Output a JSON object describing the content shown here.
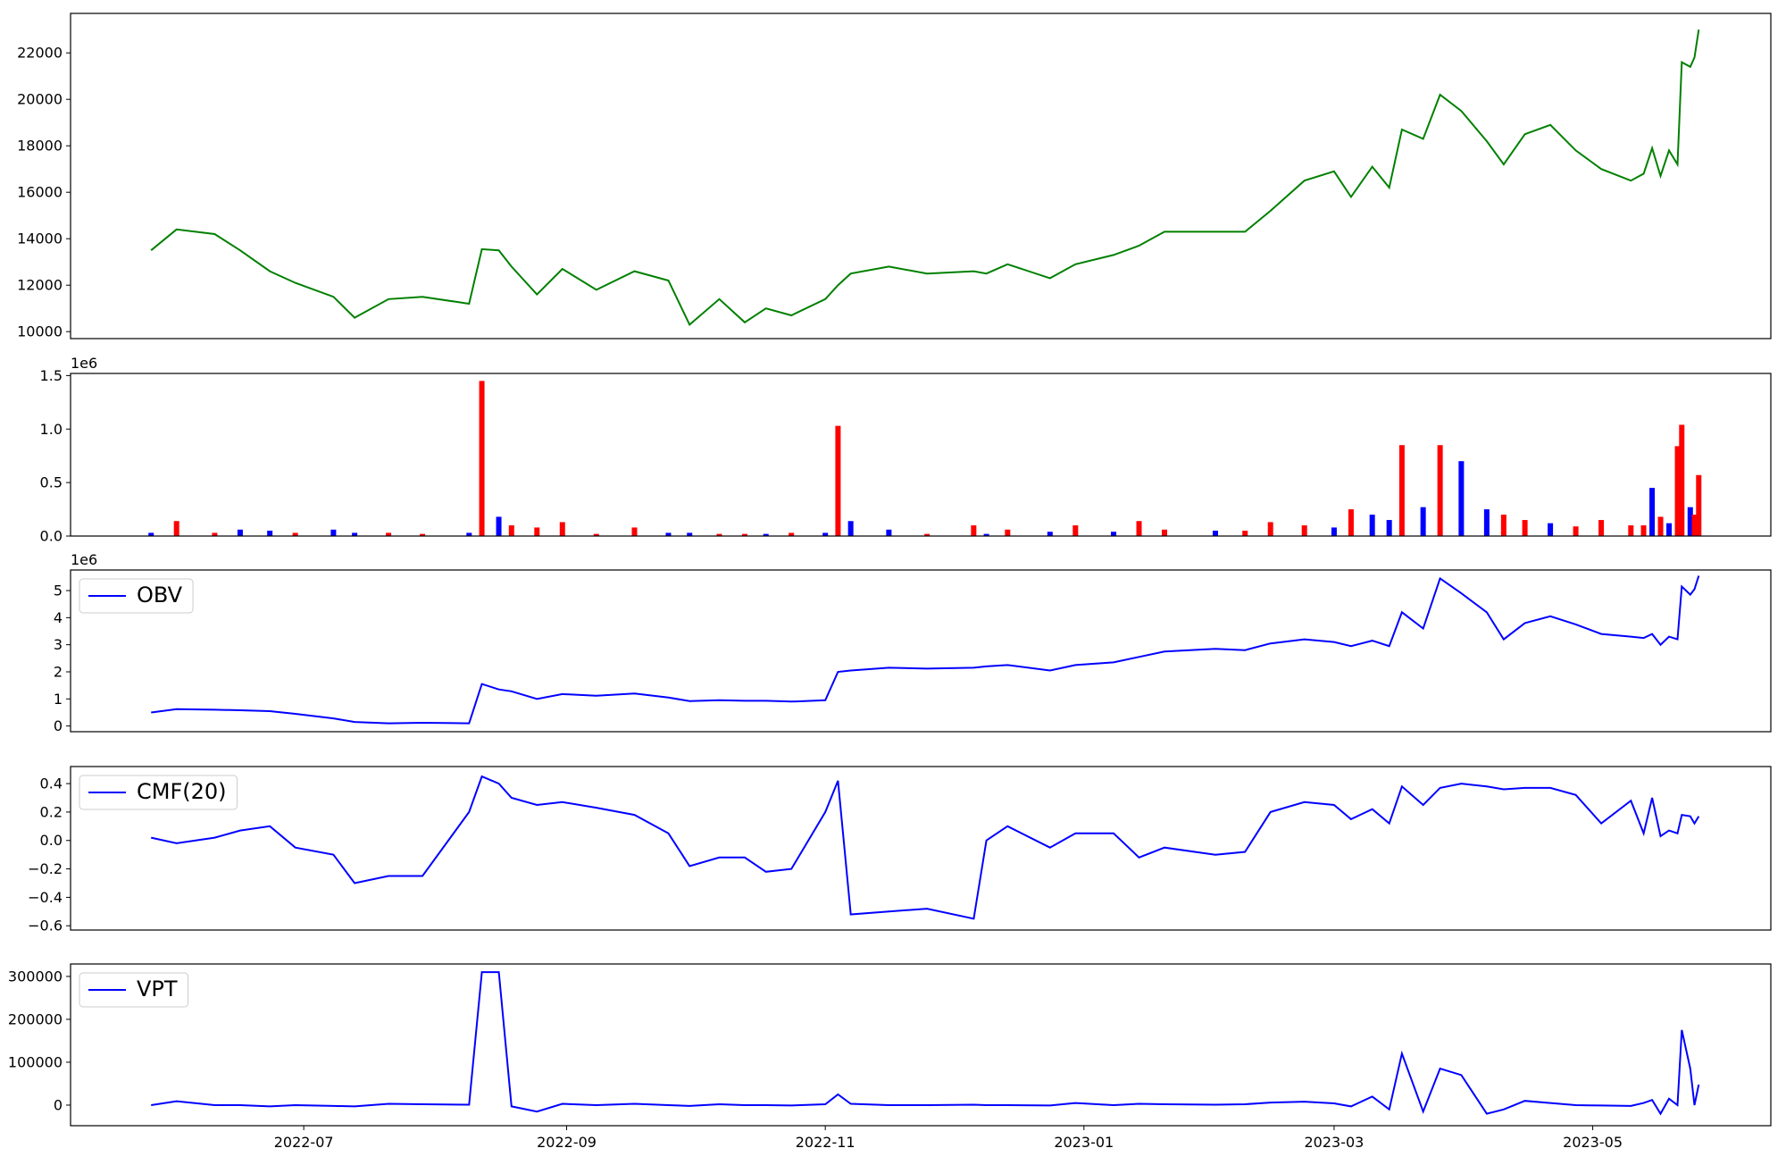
{
  "chart_data": [
    {
      "type": "line",
      "color": "green",
      "x": [
        "2022-05-26",
        "2022-06-01",
        "2022-06-10",
        "2022-06-16",
        "2022-06-23",
        "2022-06-29",
        "2022-07-08",
        "2022-07-13",
        "2022-07-21",
        "2022-07-29",
        "2022-08-09",
        "2022-08-12",
        "2022-08-16",
        "2022-08-19",
        "2022-08-25",
        "2022-08-31",
        "2022-09-08",
        "2022-09-17",
        "2022-09-25",
        "2022-09-30",
        "2022-10-07",
        "2022-10-13",
        "2022-10-18",
        "2022-10-24",
        "2022-11-01",
        "2022-11-04",
        "2022-11-07",
        "2022-11-16",
        "2022-11-25",
        "2022-12-06",
        "2022-12-09",
        "2022-12-14",
        "2022-12-24",
        "2022-12-30",
        "2023-01-08",
        "2023-01-14",
        "2023-01-20",
        "2023-02-01",
        "2023-02-08",
        "2023-02-14",
        "2023-02-22",
        "2023-03-01",
        "2023-03-05",
        "2023-03-10",
        "2023-03-14",
        "2023-03-17",
        "2023-03-22",
        "2023-03-26",
        "2023-03-31",
        "2023-04-06",
        "2023-04-10",
        "2023-04-15",
        "2023-04-21",
        "2023-04-27",
        "2023-05-03",
        "2023-05-10",
        "2023-05-13",
        "2023-05-15",
        "2023-05-17",
        "2023-05-19",
        "2023-05-21",
        "2023-05-22",
        "2023-05-24",
        "2023-05-25",
        "2023-05-26"
      ],
      "values": [
        13500,
        14400,
        14200,
        13500,
        12600,
        12100,
        11500,
        10600,
        11400,
        11500,
        11200,
        13550,
        13500,
        12800,
        11600,
        12700,
        11800,
        12600,
        12200,
        10300,
        11400,
        10400,
        11000,
        10700,
        11400,
        12000,
        12500,
        12800,
        12500,
        12600,
        12500,
        12900,
        12300,
        12900,
        13300,
        13700,
        14300,
        14300,
        14300,
        15200,
        16500,
        16900,
        15800,
        17100,
        16200,
        18700,
        18300,
        20200,
        19500,
        18200,
        17200,
        18500,
        18900,
        17800,
        17000,
        16500,
        16800,
        17900,
        16700,
        17800,
        17200,
        21600,
        21400,
        21800,
        23000
      ],
      "xlim": [
        "2022-05-07",
        "2023-06-12"
      ],
      "ylim": [
        9700,
        23700
      ],
      "yticks": [
        10000,
        12000,
        14000,
        16000,
        18000,
        20000,
        22000
      ]
    },
    {
      "type": "bar",
      "offset_text": "1e6",
      "x": [
        "2022-05-26",
        "2022-06-01",
        "2022-06-10",
        "2022-06-16",
        "2022-06-23",
        "2022-06-29",
        "2022-07-08",
        "2022-07-13",
        "2022-07-21",
        "2022-07-29",
        "2022-08-09",
        "2022-08-12",
        "2022-08-16",
        "2022-08-19",
        "2022-08-25",
        "2022-08-31",
        "2022-09-08",
        "2022-09-17",
        "2022-09-25",
        "2022-09-30",
        "2022-10-07",
        "2022-10-13",
        "2022-10-18",
        "2022-10-24",
        "2022-11-01",
        "2022-11-04",
        "2022-11-07",
        "2022-11-16",
        "2022-11-25",
        "2022-12-06",
        "2022-12-09",
        "2022-12-14",
        "2022-12-24",
        "2022-12-30",
        "2023-01-08",
        "2023-01-14",
        "2023-01-20",
        "2023-02-01",
        "2023-02-08",
        "2023-02-14",
        "2023-02-22",
        "2023-03-01",
        "2023-03-05",
        "2023-03-10",
        "2023-03-14",
        "2023-03-17",
        "2023-03-22",
        "2023-03-26",
        "2023-03-31",
        "2023-04-06",
        "2023-04-10",
        "2023-04-15",
        "2023-04-21",
        "2023-04-27",
        "2023-05-03",
        "2023-05-10",
        "2023-05-13",
        "2023-05-15",
        "2023-05-17",
        "2023-05-19",
        "2023-05-21",
        "2023-05-22",
        "2023-05-24",
        "2023-05-25",
        "2023-05-26"
      ],
      "values": [
        30000,
        140000,
        30000,
        60000,
        50000,
        30000,
        60000,
        30000,
        30000,
        20000,
        30000,
        1450000,
        180000,
        100000,
        80000,
        130000,
        20000,
        80000,
        30000,
        30000,
        20000,
        20000,
        20000,
        30000,
        30000,
        1030000,
        140000,
        60000,
        20000,
        100000,
        20000,
        60000,
        40000,
        100000,
        40000,
        140000,
        60000,
        50000,
        50000,
        130000,
        100000,
        80000,
        250000,
        200000,
        150000,
        850000,
        270000,
        850000,
        700000,
        250000,
        200000,
        150000,
        120000,
        90000,
        150000,
        100000,
        100000,
        450000,
        180000,
        120000,
        840000,
        1040000,
        270000,
        200000,
        570000
      ],
      "colors": [
        "blue",
        "red",
        "red",
        "blue",
        "blue",
        "red",
        "blue",
        "blue",
        "red",
        "red",
        "blue",
        "red",
        "blue",
        "red",
        "red",
        "red",
        "red",
        "red",
        "blue",
        "blue",
        "red",
        "red",
        "blue",
        "red",
        "blue",
        "red",
        "blue",
        "blue",
        "red",
        "red",
        "blue",
        "red",
        "blue",
        "red",
        "blue",
        "red",
        "red",
        "blue",
        "red",
        "red",
        "red",
        "blue",
        "red",
        "blue",
        "blue",
        "red",
        "blue",
        "red",
        "blue",
        "blue",
        "red",
        "red",
        "blue",
        "red",
        "red",
        "red",
        "red",
        "blue",
        "red",
        "blue",
        "red",
        "red",
        "blue",
        "red",
        "red"
      ],
      "xlim": [
        "2022-05-07",
        "2023-06-12"
      ],
      "ylim": [
        0,
        1520000
      ],
      "yticks": [
        {
          "value": 0,
          "label": "0.0"
        },
        {
          "value": 500000,
          "label": "0.5"
        },
        {
          "value": 1000000,
          "label": "1.0"
        },
        {
          "value": 1500000,
          "label": "1.5"
        }
      ]
    },
    {
      "type": "line",
      "offset_text": "1e6",
      "legend": "upper left",
      "x": [
        "2022-05-26",
        "2022-06-01",
        "2022-06-10",
        "2022-06-16",
        "2022-06-23",
        "2022-06-29",
        "2022-07-08",
        "2022-07-13",
        "2022-07-21",
        "2022-07-29",
        "2022-08-09",
        "2022-08-12",
        "2022-08-16",
        "2022-08-19",
        "2022-08-25",
        "2022-08-31",
        "2022-09-08",
        "2022-09-17",
        "2022-09-25",
        "2022-09-30",
        "2022-10-07",
        "2022-10-13",
        "2022-10-18",
        "2022-10-24",
        "2022-11-01",
        "2022-11-04",
        "2022-11-07",
        "2022-11-16",
        "2022-11-25",
        "2022-12-06",
        "2022-12-09",
        "2022-12-14",
        "2022-12-24",
        "2022-12-30",
        "2023-01-08",
        "2023-01-14",
        "2023-01-20",
        "2023-02-01",
        "2023-02-08",
        "2023-02-14",
        "2023-02-22",
        "2023-03-01",
        "2023-03-05",
        "2023-03-10",
        "2023-03-14",
        "2023-03-17",
        "2023-03-22",
        "2023-03-26",
        "2023-03-31",
        "2023-04-06",
        "2023-04-10",
        "2023-04-15",
        "2023-04-21",
        "2023-04-27",
        "2023-05-03",
        "2023-05-10",
        "2023-05-13",
        "2023-05-15",
        "2023-05-17",
        "2023-05-19",
        "2023-05-21",
        "2023-05-22",
        "2023-05-24",
        "2023-05-25",
        "2023-05-26"
      ],
      "series": [
        {
          "name": "OBV",
          "color": "blue",
          "values": [
            500000,
            620000,
            600000,
            580000,
            550000,
            450000,
            280000,
            150000,
            100000,
            120000,
            100000,
            1550000,
            1350000,
            1280000,
            1000000,
            1180000,
            1120000,
            1200000,
            1050000,
            920000,
            950000,
            930000,
            930000,
            900000,
            950000,
            2000000,
            2050000,
            2150000,
            2120000,
            2150000,
            2200000,
            2250000,
            2050000,
            2250000,
            2350000,
            2550000,
            2750000,
            2850000,
            2800000,
            3050000,
            3200000,
            3100000,
            2950000,
            3150000,
            2950000,
            4200000,
            3600000,
            5450000,
            4900000,
            4200000,
            3200000,
            3800000,
            4050000,
            3750000,
            3400000,
            3300000,
            3250000,
            3400000,
            3000000,
            3300000,
            3200000,
            5150000,
            4850000,
            5050000,
            5550000
          ]
        }
      ],
      "xlim": [
        "2022-05-07",
        "2023-06-12"
      ],
      "ylim": [
        -210000,
        5760000
      ],
      "yticks": [
        {
          "value": 0,
          "label": "0"
        },
        {
          "value": 1000000,
          "label": "1"
        },
        {
          "value": 2000000,
          "label": "2"
        },
        {
          "value": 3000000,
          "label": "3"
        },
        {
          "value": 4000000,
          "label": "4"
        },
        {
          "value": 5000000,
          "label": "5"
        }
      ]
    },
    {
      "type": "line",
      "legend": "upper left",
      "x": [
        "2022-05-26",
        "2022-06-01",
        "2022-06-10",
        "2022-06-16",
        "2022-06-23",
        "2022-06-29",
        "2022-07-08",
        "2022-07-13",
        "2022-07-21",
        "2022-07-29",
        "2022-08-09",
        "2022-08-12",
        "2022-08-16",
        "2022-08-19",
        "2022-08-25",
        "2022-08-31",
        "2022-09-08",
        "2022-09-17",
        "2022-09-25",
        "2022-09-30",
        "2022-10-07",
        "2022-10-13",
        "2022-10-18",
        "2022-10-24",
        "2022-11-01",
        "2022-11-04",
        "2022-11-07",
        "2022-11-16",
        "2022-11-25",
        "2022-12-06",
        "2022-12-09",
        "2022-12-14",
        "2022-12-24",
        "2022-12-30",
        "2023-01-08",
        "2023-01-14",
        "2023-01-20",
        "2023-02-01",
        "2023-02-08",
        "2023-02-14",
        "2023-02-22",
        "2023-03-01",
        "2023-03-05",
        "2023-03-10",
        "2023-03-14",
        "2023-03-17",
        "2023-03-22",
        "2023-03-26",
        "2023-03-31",
        "2023-04-06",
        "2023-04-10",
        "2023-04-15",
        "2023-04-21",
        "2023-04-27",
        "2023-05-03",
        "2023-05-10",
        "2023-05-13",
        "2023-05-15",
        "2023-05-17",
        "2023-05-19",
        "2023-05-21",
        "2023-05-22",
        "2023-05-24",
        "2023-05-25",
        "2023-05-26"
      ],
      "series": [
        {
          "name": "CMF(20)",
          "color": "blue",
          "values": [
            0.02,
            -0.02,
            0.02,
            0.07,
            0.1,
            -0.05,
            -0.1,
            -0.3,
            -0.25,
            -0.25,
            0.2,
            0.45,
            0.4,
            0.3,
            0.25,
            0.27,
            0.23,
            0.18,
            0.05,
            -0.18,
            -0.12,
            -0.12,
            -0.22,
            -0.2,
            0.2,
            0.42,
            -0.52,
            -0.5,
            -0.48,
            -0.55,
            0.0,
            0.1,
            -0.05,
            0.05,
            0.05,
            -0.12,
            -0.05,
            -0.1,
            -0.08,
            0.2,
            0.27,
            0.25,
            0.15,
            0.22,
            0.12,
            0.38,
            0.25,
            0.37,
            0.4,
            0.38,
            0.36,
            0.37,
            0.37,
            0.32,
            0.12,
            0.28,
            0.05,
            0.3,
            0.03,
            0.07,
            0.05,
            0.18,
            0.17,
            0.12,
            0.17
          ]
        }
      ],
      "xlim": [
        "2022-05-07",
        "2023-06-12"
      ],
      "ylim": [
        -0.63,
        0.52
      ],
      "yticks": [
        {
          "value": -0.6,
          "label": "−0.6"
        },
        {
          "value": -0.4,
          "label": "−0.4"
        },
        {
          "value": -0.2,
          "label": "−0.2"
        },
        {
          "value": 0,
          "label": "0.0"
        },
        0.2,
        0.4
      ]
    },
    {
      "type": "line",
      "legend": "upper left",
      "x": [
        "2022-05-26",
        "2022-06-01",
        "2022-06-10",
        "2022-06-16",
        "2022-06-23",
        "2022-06-29",
        "2022-07-08",
        "2022-07-13",
        "2022-07-21",
        "2022-07-29",
        "2022-08-09",
        "2022-08-12",
        "2022-08-16",
        "2022-08-19",
        "2022-08-25",
        "2022-08-31",
        "2022-09-08",
        "2022-09-17",
        "2022-09-25",
        "2022-09-30",
        "2022-10-07",
        "2022-10-13",
        "2022-10-18",
        "2022-10-24",
        "2022-11-01",
        "2022-11-04",
        "2022-11-07",
        "2022-11-16",
        "2022-11-25",
        "2022-12-06",
        "2022-12-09",
        "2022-12-14",
        "2022-12-24",
        "2022-12-30",
        "2023-01-08",
        "2023-01-14",
        "2023-01-20",
        "2023-02-01",
        "2023-02-08",
        "2023-02-14",
        "2023-02-22",
        "2023-03-01",
        "2023-03-05",
        "2023-03-10",
        "2023-03-14",
        "2023-03-17",
        "2023-03-22",
        "2023-03-26",
        "2023-03-31",
        "2023-04-06",
        "2023-04-10",
        "2023-04-15",
        "2023-04-21",
        "2023-04-27",
        "2023-05-03",
        "2023-05-10",
        "2023-05-13",
        "2023-05-15",
        "2023-05-17",
        "2023-05-19",
        "2023-05-21",
        "2023-05-22",
        "2023-05-24",
        "2023-05-25",
        "2023-05-26"
      ],
      "series": [
        {
          "name": "VPT",
          "color": "blue",
          "values": [
            0,
            9000,
            0,
            0,
            -3000,
            0,
            -2000,
            -3000,
            3000,
            2000,
            1000,
            310000,
            310000,
            -3000,
            -15000,
            3000,
            0,
            3000,
            0,
            -2000,
            2000,
            0,
            0,
            -1000,
            2000,
            25000,
            3000,
            0,
            0,
            1000,
            0,
            0,
            -1000,
            5000,
            0,
            3000,
            2000,
            1000,
            2000,
            6000,
            8000,
            4000,
            -3000,
            20000,
            -10000,
            120000,
            -15000,
            85000,
            70000,
            -20000,
            -10000,
            10000,
            5000,
            0,
            -1000,
            -2000,
            5000,
            12000,
            -20000,
            15000,
            0,
            175000,
            85000,
            0,
            48000
          ]
        }
      ],
      "xlim": [
        "2022-05-07",
        "2023-06-12"
      ],
      "ylim": [
        -48000,
        329000
      ],
      "yticks": [
        0,
        100000,
        200000,
        300000
      ],
      "xticks": [
        {
          "value": "2022-07-01",
          "label": "2022-07"
        },
        {
          "value": "2022-09-01",
          "label": "2022-09"
        },
        {
          "value": "2022-11-01",
          "label": "2022-11"
        },
        {
          "value": "2023-01-01",
          "label": "2023-01"
        },
        {
          "value": "2023-03-01",
          "label": "2023-03"
        },
        {
          "value": "2023-05-01",
          "label": "2023-05"
        }
      ]
    }
  ]
}
